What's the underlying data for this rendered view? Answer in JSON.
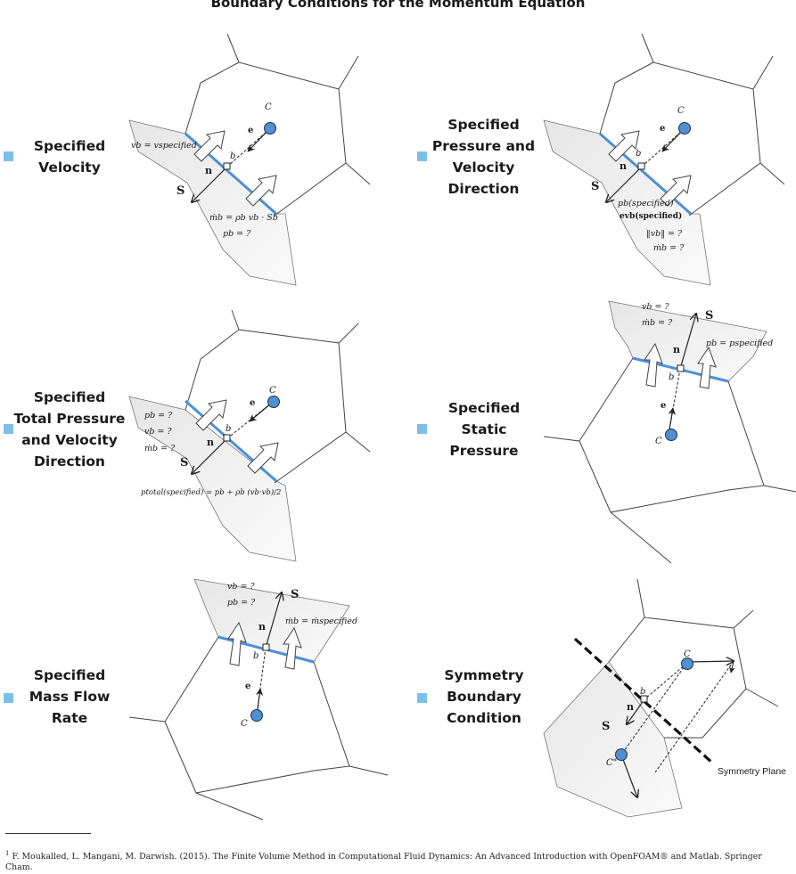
{
  "title": "Boundary Conditions for the Momentum Equation",
  "colors": {
    "bullet": "#7cc0ea",
    "boundary": "#4a90d9",
    "node": "#4f8fd3",
    "region": "#efefef"
  },
  "panels": [
    {
      "label_lines": [
        "Specified",
        "Velocity"
      ],
      "eqs": [
        "vb = vspecified",
        "ṁb = ρb vb · Sb",
        "pb = ?"
      ]
    },
    {
      "label_lines": [
        "Specified",
        "Pressure and",
        "Velocity",
        "Direction"
      ],
      "eqs": [
        "pb(specified)",
        "evb(specified)",
        "‖vb‖ = ?",
        "ṁb = ?"
      ]
    },
    {
      "label_lines": [
        "Specified",
        "Total Pressure",
        "and Velocity",
        "Direction"
      ],
      "eqs": [
        "pb = ?",
        "vb = ?",
        "ṁb = ?",
        "ptotal(specified) = pb + ρb (vb·vb)/2"
      ]
    },
    {
      "label_lines": [
        "Specified",
        "Static",
        "Pressure"
      ],
      "eqs": [
        "vb = ?",
        "ṁb = ?",
        "pb = pspecified"
      ]
    },
    {
      "label_lines": [
        "Specified",
        "Mass Flow",
        "Rate"
      ],
      "eqs": [
        "vb = ?",
        "pb = ?",
        "ṁb = ṁspecified"
      ]
    },
    {
      "label_lines": [
        "Symmetry",
        "Boundary",
        "Condition"
      ],
      "eqs": [
        "Symmetry Plane"
      ]
    }
  ],
  "symbols": {
    "C": "C",
    "Cpp": "C\"",
    "b": "b",
    "n": "n",
    "eb": "e",
    "Sb": "S",
    "sub_b": "b"
  },
  "footnote": {
    "marker": "1",
    "text": "F. Moukalled, L. Mangani, M. Darwish. (2015). The Finite Volume Method in Computational Fluid Dynamics: An Advanced Introduction with OpenFOAM® and Matlab. Springer Cham."
  }
}
